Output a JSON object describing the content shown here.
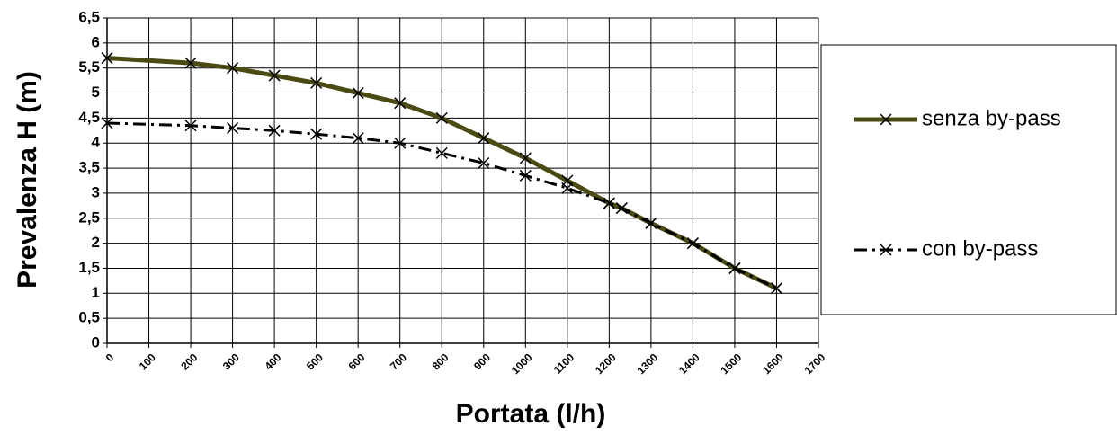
{
  "chart_data": {
    "type": "line",
    "xlabel": "Portata (l/h)",
    "ylabel": "Prevalenza H (m)",
    "x": [
      0,
      200,
      300,
      400,
      500,
      600,
      700,
      800,
      900,
      1000,
      1100,
      1200,
      1230,
      1300,
      1400,
      1500,
      1600
    ],
    "series": [
      {
        "name": "senza by-pass",
        "color": "#4a4a12",
        "line_style": "solid",
        "values": [
          5.7,
          5.6,
          5.5,
          5.35,
          5.2,
          5.0,
          4.8,
          4.5,
          4.1,
          3.7,
          3.25,
          2.8,
          2.7,
          2.4,
          2.0,
          1.5,
          1.1
        ]
      },
      {
        "name": "con by-pass",
        "color": "#000000",
        "line_style": "dashdot",
        "values": [
          4.4,
          4.35,
          4.3,
          4.25,
          4.18,
          4.1,
          4.0,
          3.8,
          3.6,
          3.35,
          3.1,
          2.8,
          2.7,
          2.4,
          2.0,
          1.5,
          1.1
        ]
      }
    ],
    "xlim": [
      0,
      1700
    ],
    "xticks": [
      0,
      100,
      200,
      300,
      400,
      500,
      600,
      700,
      800,
      900,
      1000,
      1100,
      1200,
      1300,
      1400,
      1500,
      1600,
      1700
    ],
    "ylim": [
      0,
      6.5
    ],
    "yticks": [
      0,
      {
        "value": 0.5,
        "label": "0,5"
      },
      1,
      {
        "value": 1.5,
        "label": "1,5"
      },
      2,
      {
        "value": 2.5,
        "label": "2,5"
      },
      3,
      {
        "value": 3.5,
        "label": "3,5"
      },
      4,
      {
        "value": 4.5,
        "label": "4,5"
      },
      5,
      {
        "value": 5.5,
        "label": "5,5"
      },
      6,
      {
        "value": 6.5,
        "label": "6,5"
      }
    ],
    "grid": true,
    "legend": "right"
  }
}
